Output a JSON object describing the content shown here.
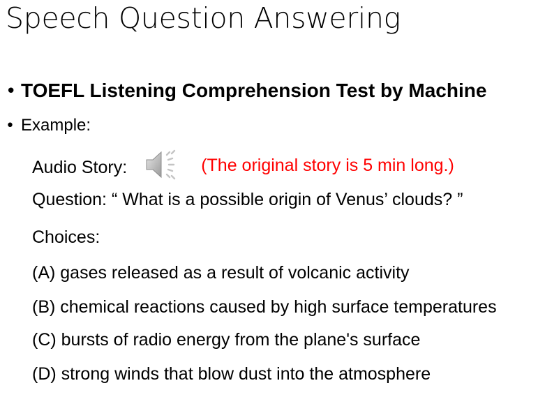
{
  "slide": {
    "title": "Speech Question Answering",
    "bullets": [
      {
        "text": "TOEFL Listening Comprehension Test by Machine"
      },
      {
        "text": "Example:"
      }
    ],
    "audio": {
      "label": "Audio Story:",
      "icon": "speaker-icon",
      "note": "(The original story is 5 min long.)",
      "note_color": "#ff0000"
    },
    "question": "Question: “ What is a possible origin of Venus’ clouds? ”",
    "choices_label": "Choices:",
    "choices": [
      "(A) gases released as a result of volcanic activity",
      "(B) chemical reactions caused by high surface temperatures",
      "(C) bursts of radio energy from the plane's surface",
      "(D) strong winds that blow dust into the atmosphere"
    ]
  }
}
